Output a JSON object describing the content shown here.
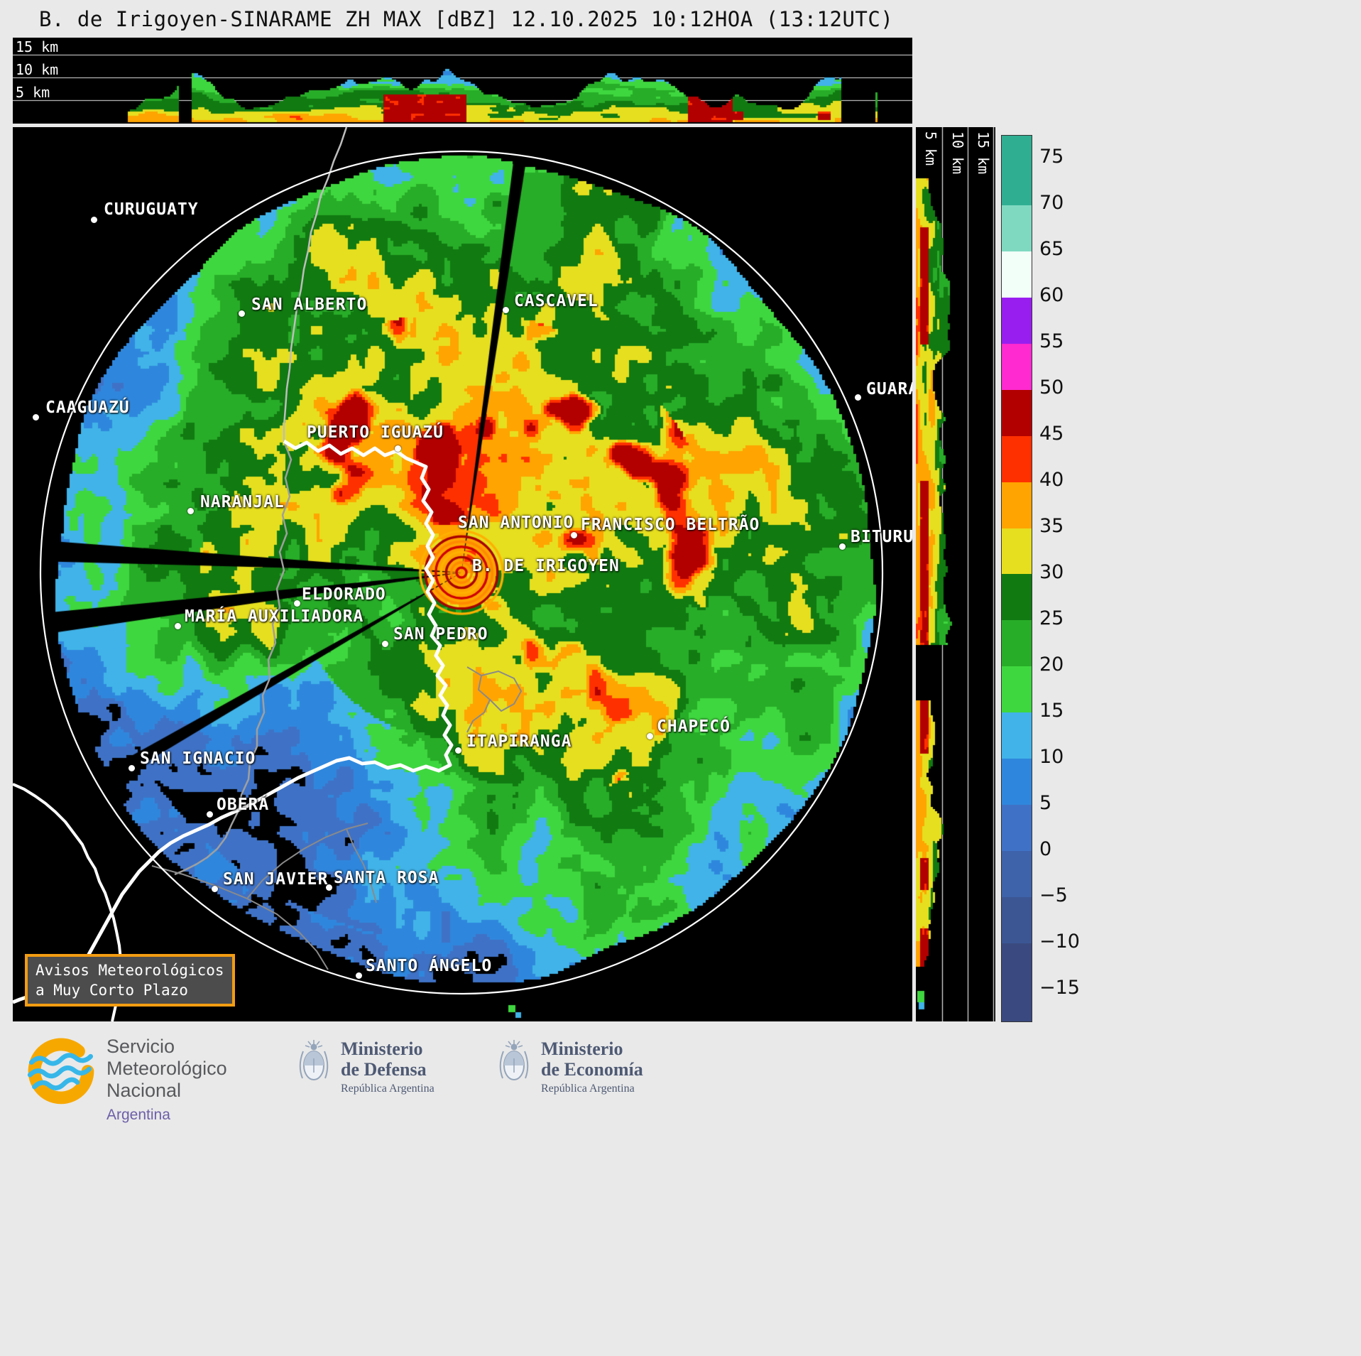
{
  "title": "B. de Irigoyen-SINARAME ZH MAX [dBZ] 12.10.2025 10:12HOA (13:12UTC)",
  "profiles": {
    "top": {
      "labels": [
        "15 km",
        "10 km",
        "5 km"
      ]
    },
    "right": {
      "labels": [
        "5 km",
        "10 km",
        "15 km"
      ]
    }
  },
  "colorbar": {
    "tick_labels": [
      "75",
      "70",
      "65",
      "60",
      "55",
      "50",
      "45",
      "40",
      "35",
      "30",
      "25",
      "20",
      "15",
      "10",
      "5",
      "0",
      "−5",
      "−10",
      "−15"
    ],
    "tick_values": [
      75,
      70,
      65,
      60,
      55,
      50,
      45,
      40,
      35,
      30,
      25,
      20,
      15,
      10,
      5,
      0,
      -5,
      -10,
      -15
    ],
    "palette_low_to_high": [
      "#3a4a80",
      "#3c5694",
      "#3e63ab",
      "#3f72c6",
      "#2f87dd",
      "#41b3e8",
      "#3fd73f",
      "#28ad28",
      "#117a11",
      "#e6df1f",
      "#ffa400",
      "#ff3000",
      "#b20000",
      "#ff2ad0",
      "#981ef0",
      "#f2fff8",
      "#7fd9c0",
      "#2fae92"
    ]
  },
  "cities": [
    {
      "name": "CURUGUATY",
      "dot": [
        114,
        130
      ],
      "label": [
        128,
        103
      ]
    },
    {
      "name": "SAN ALBERTO",
      "dot": [
        322,
        262
      ],
      "label": [
        336,
        237
      ]
    },
    {
      "name": "CASCAVEL",
      "dot": [
        694,
        257
      ],
      "label": [
        706,
        232
      ]
    },
    {
      "name": "CAAGUAZÚ",
      "dot": [
        32,
        408
      ],
      "label": [
        46,
        382
      ]
    },
    {
      "name": "GUARA",
      "dot": [
        1190,
        380
      ],
      "label": [
        1202,
        356
      ]
    },
    {
      "name": "PUERTO IGUAZÚ",
      "dot": [
        542,
        452
      ],
      "label": [
        414,
        417
      ]
    },
    {
      "name": "NARANJAL",
      "dot": [
        250,
        540
      ],
      "label": [
        264,
        515
      ]
    },
    {
      "name": "SAN ANTONIO",
      "dot": null,
      "label": [
        627,
        544
      ]
    },
    {
      "name": "FRANCISCO BELTRÃO",
      "dot": [
        790,
        574
      ],
      "label": [
        800,
        547
      ]
    },
    {
      "name": "BITURU",
      "dot": [
        1168,
        590
      ],
      "label": [
        1180,
        564
      ]
    },
    {
      "name": "B. DE IRIGOYEN",
      "dot": null,
      "label": [
        647,
        605
      ]
    },
    {
      "name": "ELDORADO",
      "dot": [
        400,
        670
      ],
      "label": [
        407,
        645
      ]
    },
    {
      "name": "MARÍA AUXILIADORA",
      "dot": [
        232,
        702
      ],
      "label": [
        242,
        676
      ]
    },
    {
      "name": "SAN PEDRO",
      "dot": [
        524,
        727
      ],
      "label": [
        536,
        701
      ]
    },
    {
      "name": "CHAPECÓ",
      "dot": [
        897,
        857
      ],
      "label": [
        907,
        831
      ]
    },
    {
      "name": "ITAPIRANGA",
      "dot": [
        627,
        877
      ],
      "label": [
        639,
        852
      ]
    },
    {
      "name": "SAN IGNACIO",
      "dot": [
        167,
        902
      ],
      "label": [
        179,
        876
      ]
    },
    {
      "name": "OBERÁ",
      "dot": [
        277,
        967
      ],
      "label": [
        287,
        941
      ]
    },
    {
      "name": "SAN JAVIER",
      "dot": [
        284,
        1072
      ],
      "label": [
        296,
        1046
      ]
    },
    {
      "name": "SANTA ROSA",
      "dot": [
        445,
        1070
      ],
      "label": [
        452,
        1044
      ]
    },
    {
      "name": "SANTO ÁNGELO",
      "dot": [
        487,
        1194
      ],
      "label": [
        497,
        1168
      ]
    }
  ],
  "alert_box": {
    "line1": "Avisos Meteorológicos",
    "line2": "a Muy Corto Plazo",
    "border_color": "#f39c12"
  },
  "footer": {
    "smn": {
      "line1": "Servicio",
      "line2": "Meteorológico",
      "line3": "Nacional",
      "country": "Argentina"
    },
    "defensa": {
      "title1": "Ministerio",
      "title2": "de Defensa",
      "subtitle": "República Argentina"
    },
    "economia": {
      "title1": "Ministerio",
      "title2": "de Economía",
      "subtitle": "República Argentina"
    }
  }
}
